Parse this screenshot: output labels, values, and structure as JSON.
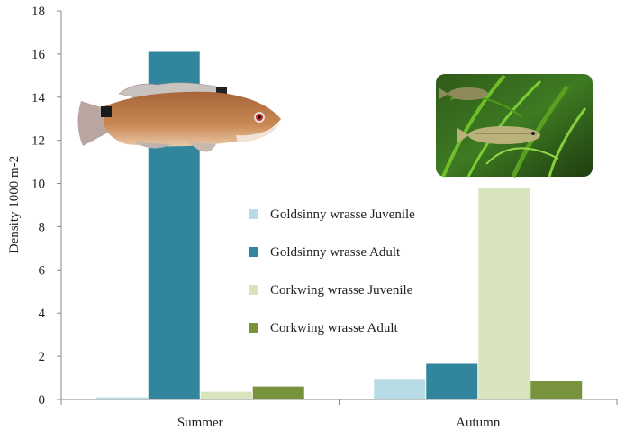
{
  "chart_data": {
    "type": "bar",
    "categories": [
      "Summer",
      "Autumn"
    ],
    "series": [
      {
        "name": "Goldsinny wrasse Juvenile",
        "color": "#b8dce6",
        "values": [
          0.1,
          0.95
        ]
      },
      {
        "name": "Goldsinny wrasse Adult",
        "color": "#31859c",
        "values": [
          16.1,
          1.65
        ]
      },
      {
        "name": "Corkwing wrasse Juvenile",
        "color": "#d8e4bc",
        "values": [
          0.35,
          9.8
        ]
      },
      {
        "name": "Corkwing wrasse Adult",
        "color": "#77933c",
        "values": [
          0.6,
          0.85
        ]
      }
    ],
    "ylabel": "Density 1000 m-2",
    "xlabel": "",
    "ylim": [
      0,
      18
    ],
    "yticks": [
      0,
      2,
      4,
      6,
      8,
      10,
      12,
      14,
      16,
      18
    ],
    "grid": false,
    "legend_position": "center"
  },
  "images": {
    "goldsinny_fish": "goldsinny-wrasse-illustration",
    "corkwing_photo": "corkwing-wrasse-photo-in-seagrass"
  }
}
